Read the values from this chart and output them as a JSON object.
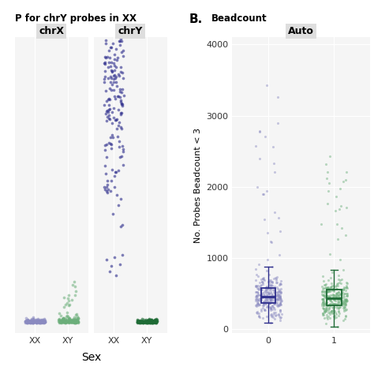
{
  "panel_A_title": "P for chrY probes in XX",
  "panel_B_label": "B.",
  "panel_B_title": "Beadcount",
  "facet_A_labels": [
    "chrX",
    "chrY"
  ],
  "facet_B_label": "Auto",
  "xlabel": "Sex",
  "ylabel_B": "No. Probes Beadcount < 3",
  "xtick_labels": [
    "XX",
    "XY"
  ],
  "color_XX": "#2D2D8C",
  "color_XY": "#1E6B35",
  "color_XX_light": "#8A8AC0",
  "color_XY_light": "#6BAE7A",
  "panel_background": "#F5F5F5",
  "grid_color": "#FFFFFF",
  "facet_bg": "#DEDEDE",
  "ylim_B": [
    -50,
    4100
  ],
  "yticks_B": [
    0,
    1000,
    2000,
    3000,
    4000
  ],
  "seed": 99
}
